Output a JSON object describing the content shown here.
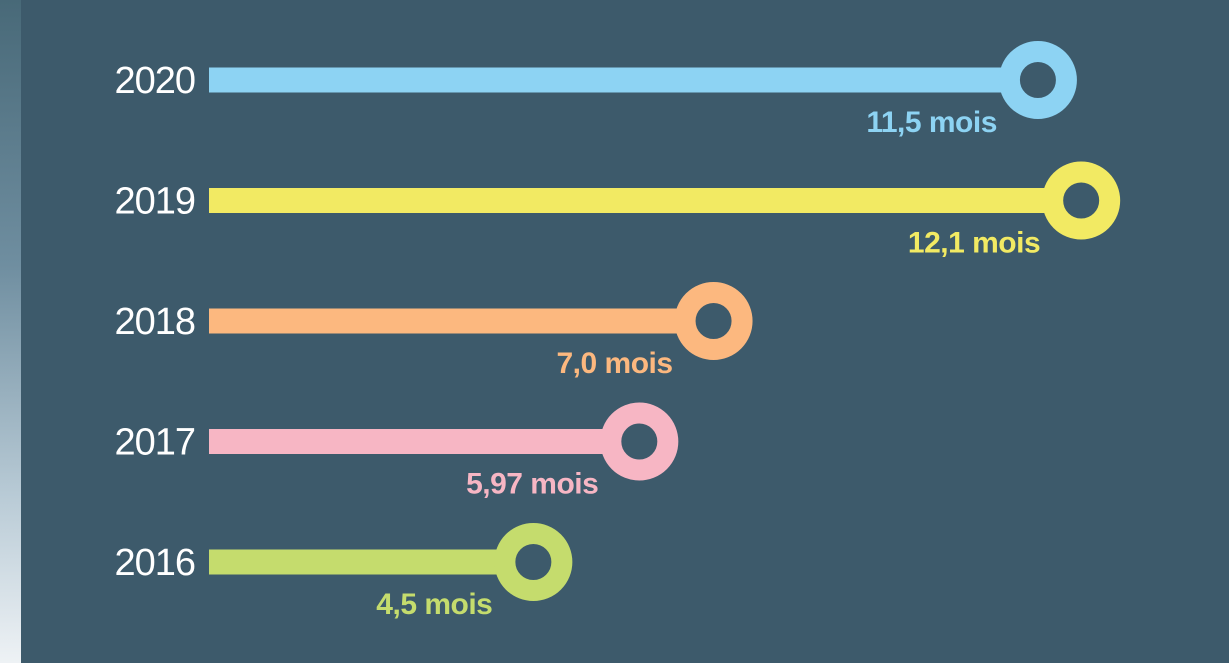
{
  "colors": {
    "background": "#3d5a6b",
    "year_text": "#ffffff"
  },
  "chart_data": {
    "type": "bar",
    "orientation": "horizontal",
    "title": "",
    "xlabel": "",
    "ylabel": "",
    "unit": "mois",
    "grid": false,
    "xlim": [
      0,
      12.1
    ],
    "categories": [
      "2020",
      "2019",
      "2018",
      "2017",
      "2016"
    ],
    "values": [
      11.5,
      12.1,
      7.0,
      5.97,
      4.5
    ],
    "value_labels": [
      "11,5 mois",
      "12,1 mois",
      "7,0 mois",
      "5,97 mois",
      "4,5 mois"
    ],
    "bar_colors": [
      "#8dd3f3",
      "#f2ea63",
      "#fcb87f",
      "#f7b6c4",
      "#c5dc6d"
    ]
  }
}
